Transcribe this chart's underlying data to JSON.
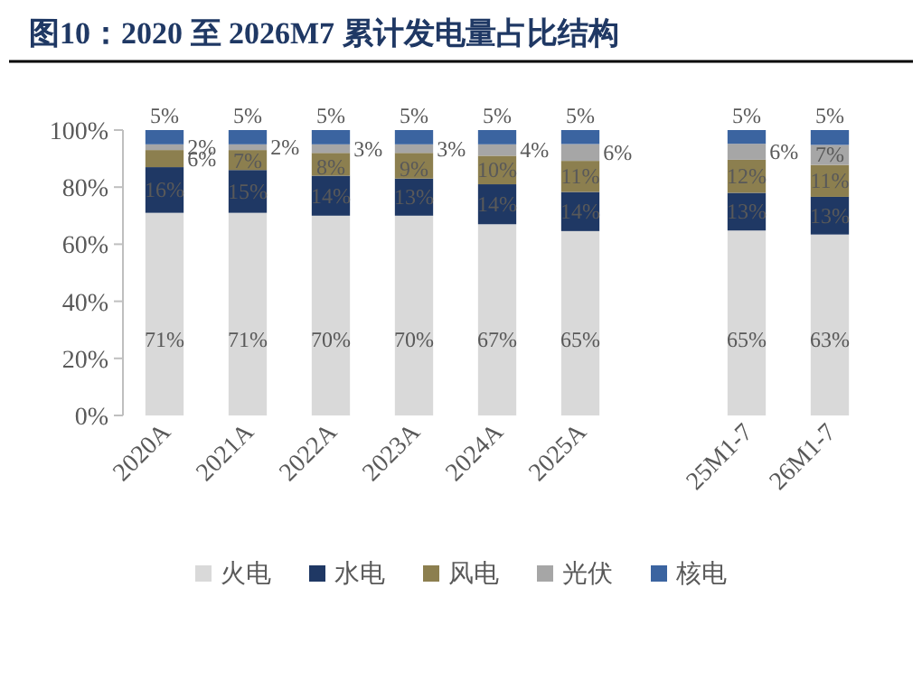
{
  "chart_data": {
    "type": "bar",
    "title": "图10：2020 至 2026M7 累计发电量占比结构",
    "categories": [
      "2020A",
      "2021A",
      "2022A",
      "2023A",
      "2024A",
      "2025A",
      null,
      "25M1-7",
      "26M1-7"
    ],
    "stacked": true,
    "legend": "bottom",
    "grid": false,
    "ylim": [
      0,
      100
    ],
    "yticks": [
      {
        "value": 0,
        "label": "0%"
      },
      {
        "value": 20,
        "label": "20%"
      },
      {
        "value": 40,
        "label": "40%"
      },
      {
        "value": 60,
        "label": "60%"
      },
      {
        "value": 80,
        "label": "80%"
      },
      {
        "value": 100,
        "label": "100%"
      }
    ],
    "series": [
      {
        "name": "火电",
        "color": "#d9d9d9",
        "values": [
          71,
          71,
          70,
          70,
          67,
          64.6,
          null,
          64.8,
          63.4
        ],
        "value_labels": [
          "71%",
          "71%",
          "70%",
          "70%",
          "67%",
          "65%",
          null,
          "65%",
          "63%"
        ]
      },
      {
        "name": "水电",
        "color": "#1f3864",
        "values": [
          16,
          15,
          14,
          13,
          14,
          13.7,
          null,
          13.2,
          13.2
        ],
        "value_labels": [
          "16%",
          "15%",
          "14%",
          "13%",
          "14%",
          "14%",
          null,
          "13%",
          "13%"
        ]
      },
      {
        "name": "风电",
        "color": "#8c7f4f",
        "values": [
          6,
          7,
          8,
          9,
          10,
          10.9,
          null,
          11.6,
          11.2
        ],
        "value_labels": [
          "6%",
          "7%",
          "8%",
          "9%",
          "10%",
          "11%",
          null,
          "12%",
          "11%"
        ]
      },
      {
        "name": "光伏",
        "color": "#a6a6a6",
        "values": [
          2,
          2,
          3,
          3,
          4,
          5.9,
          null,
          5.6,
          7.0
        ],
        "value_labels": [
          "2%",
          "2%",
          "3%",
          "3%",
          "4%",
          "6%",
          null,
          "6%",
          "7%"
        ]
      },
      {
        "name": "核电",
        "color": "#3b64a0",
        "values": [
          5,
          5,
          5,
          5,
          5,
          4.9,
          null,
          4.8,
          5.2
        ],
        "value_labels": [
          "5%",
          "5%",
          "5%",
          "5%",
          "5%",
          "5%",
          null,
          "5%",
          "5%"
        ]
      }
    ]
  }
}
